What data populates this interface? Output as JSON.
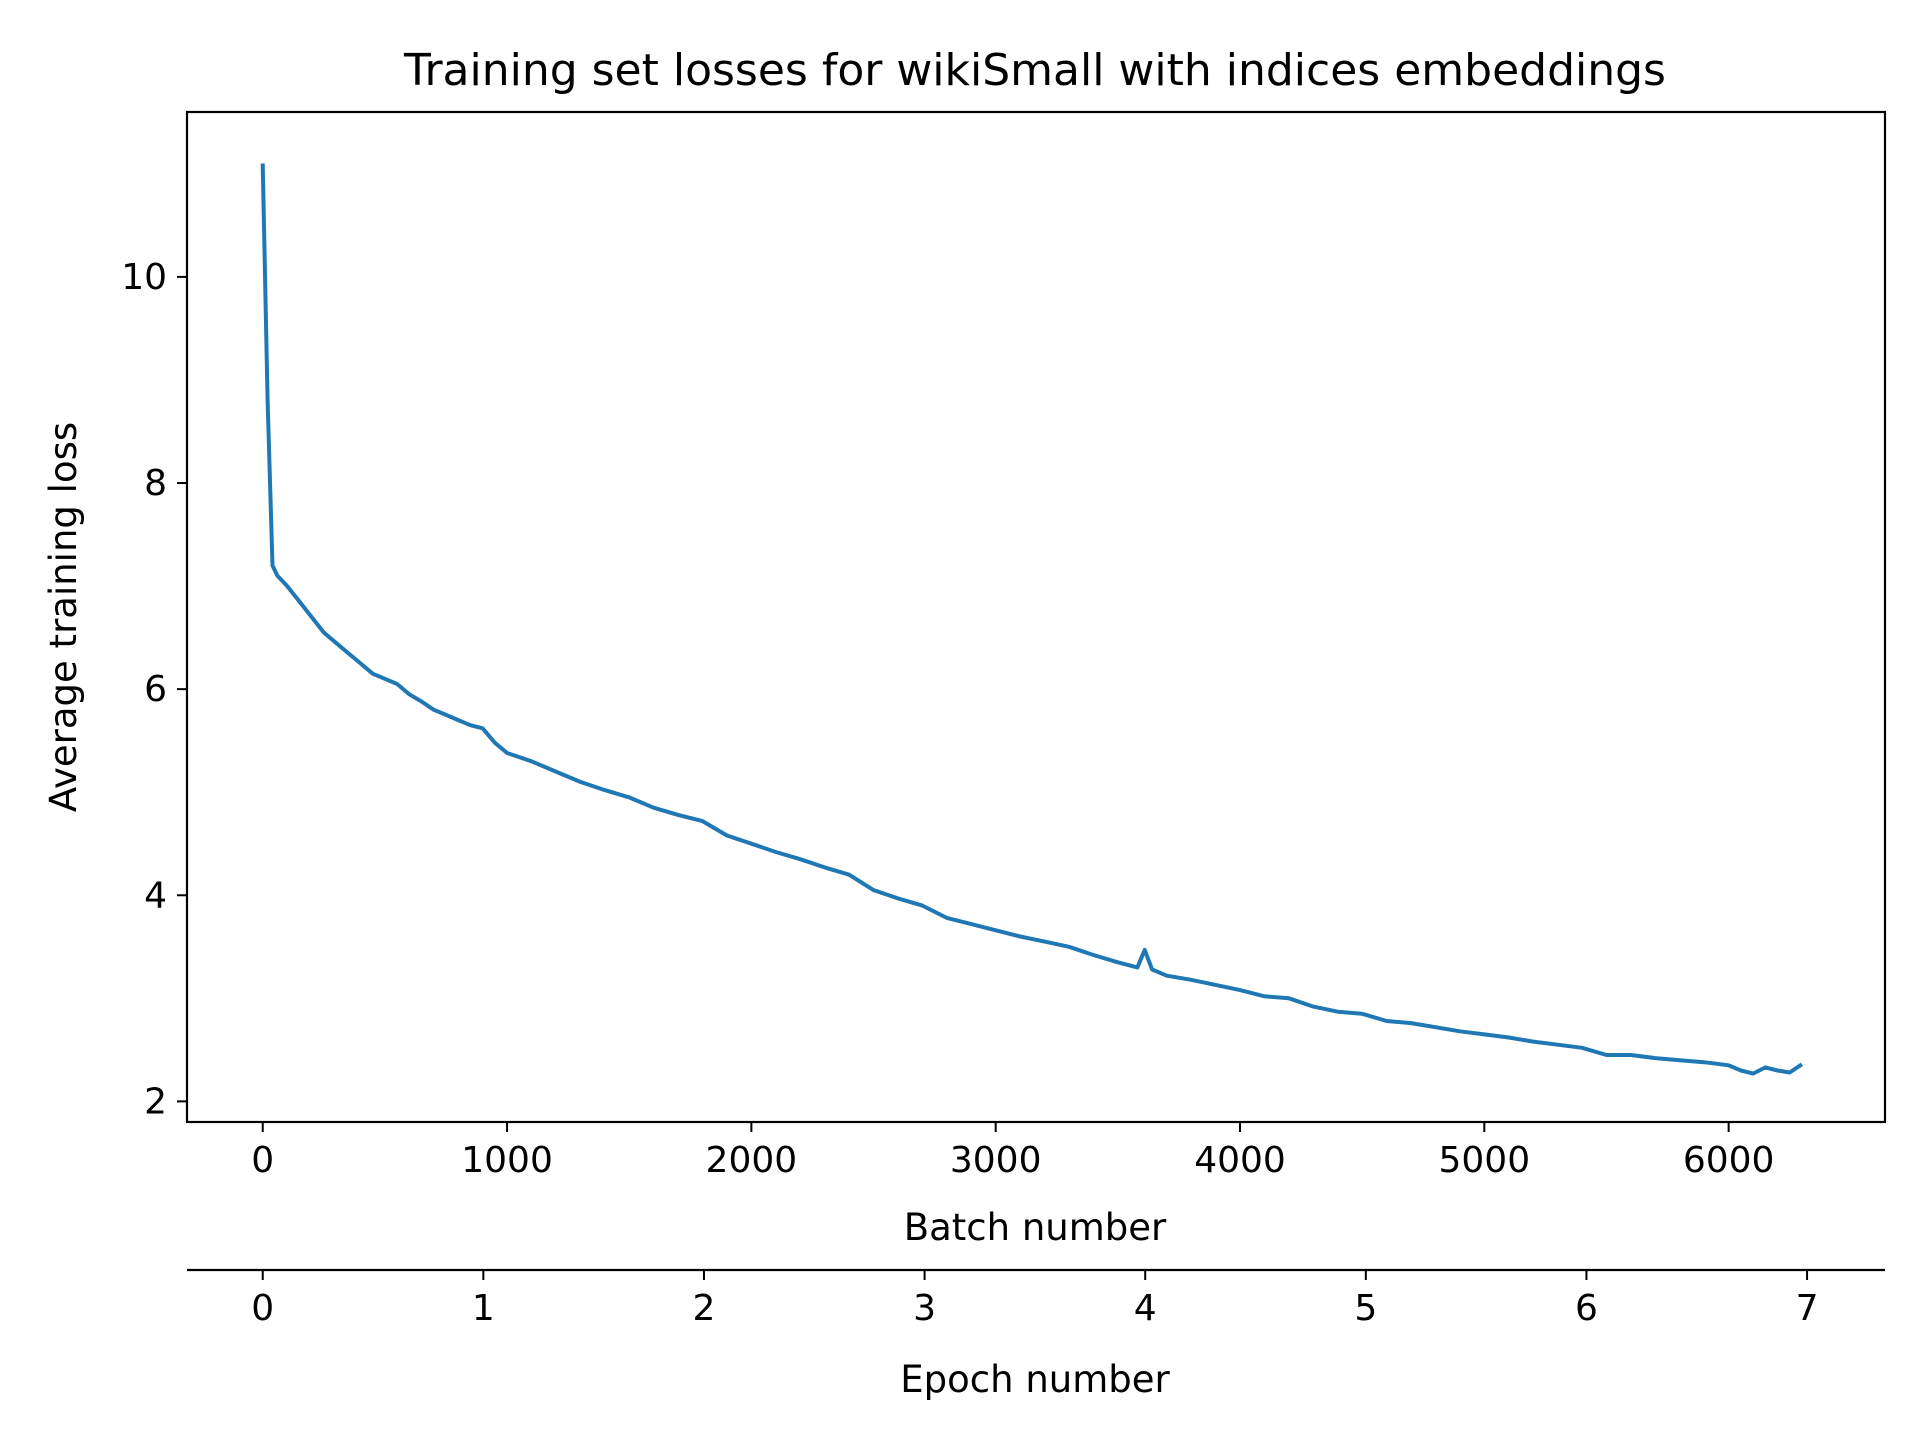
{
  "chart_data": {
    "type": "line",
    "title": "Training set losses for wikiSmall with indices embeddings",
    "xlabel": "Batch number",
    "ylabel": "Average training loss",
    "secondary_xlabel": "Epoch number",
    "xlim": [
      -310,
      6640
    ],
    "ylim": [
      1.8,
      11.6
    ],
    "x_ticks": [
      0,
      1000,
      2000,
      3000,
      4000,
      5000,
      6000
    ],
    "y_ticks": [
      2,
      4,
      6,
      8,
      10
    ],
    "epoch_ticks": [
      0,
      1,
      2,
      3,
      4,
      5,
      6,
      7
    ],
    "epoch_batch_scale": 903,
    "grid": false,
    "legend": false,
    "series_color": "#1f77b4",
    "series": [
      {
        "x": [
          0,
          20,
          40,
          60,
          80,
          100,
          150,
          200,
          250,
          300,
          350,
          400,
          450,
          500,
          550,
          600,
          650,
          700,
          750,
          800,
          850,
          900,
          950,
          1000,
          1100,
          1200,
          1300,
          1400,
          1500,
          1600,
          1700,
          1800,
          1900,
          2000,
          2100,
          2200,
          2300,
          2400,
          2500,
          2600,
          2700,
          2800,
          2900,
          3000,
          3100,
          3200,
          3300,
          3400,
          3500,
          3580,
          3610,
          3640,
          3700,
          3800,
          3900,
          4000,
          4100,
          4200,
          4300,
          4400,
          4500,
          4600,
          4700,
          4800,
          4900,
          5000,
          5100,
          5200,
          5300,
          5400,
          5500,
          5600,
          5700,
          5800,
          5900,
          6000,
          6050,
          6100,
          6150,
          6200,
          6250,
          6300
        ],
        "y": [
          11.1,
          8.8,
          7.2,
          7.1,
          7.05,
          7.0,
          6.85,
          6.7,
          6.55,
          6.45,
          6.35,
          6.25,
          6.15,
          6.1,
          6.05,
          5.95,
          5.88,
          5.8,
          5.75,
          5.7,
          5.65,
          5.62,
          5.48,
          5.38,
          5.3,
          5.2,
          5.1,
          5.02,
          4.95,
          4.85,
          4.78,
          4.72,
          4.58,
          4.5,
          4.42,
          4.35,
          4.27,
          4.2,
          4.05,
          3.97,
          3.9,
          3.78,
          3.72,
          3.66,
          3.6,
          3.55,
          3.5,
          3.42,
          3.35,
          3.3,
          3.47,
          3.28,
          3.22,
          3.18,
          3.13,
          3.08,
          3.02,
          3.0,
          2.92,
          2.87,
          2.85,
          2.78,
          2.76,
          2.72,
          2.68,
          2.65,
          2.62,
          2.58,
          2.55,
          2.52,
          2.45,
          2.45,
          2.42,
          2.4,
          2.38,
          2.35,
          2.3,
          2.27,
          2.33,
          2.3,
          2.28,
          2.36
        ]
      }
    ]
  }
}
